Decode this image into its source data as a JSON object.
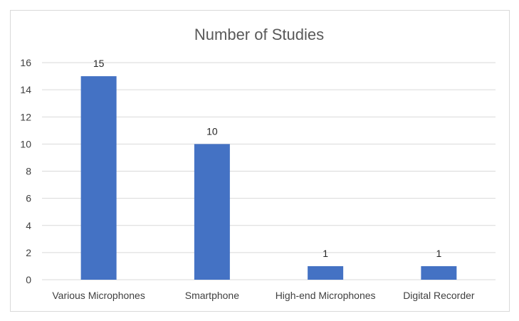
{
  "chart_data": {
    "type": "bar",
    "title": "Number of Studies",
    "xlabel": "",
    "ylabel": "",
    "categories": [
      "Various Microphones",
      "Smartphone",
      "High-end Microphones",
      "Digital Recorder"
    ],
    "values": [
      15,
      10,
      1,
      1
    ],
    "data_labels": [
      "15",
      "10",
      "1",
      "1"
    ],
    "ylim": [
      0,
      16
    ],
    "y_ticks": [
      0,
      2,
      4,
      6,
      8,
      10,
      12,
      14,
      16
    ],
    "grid": true,
    "legend": "none",
    "bar_color": "#4472c4"
  }
}
